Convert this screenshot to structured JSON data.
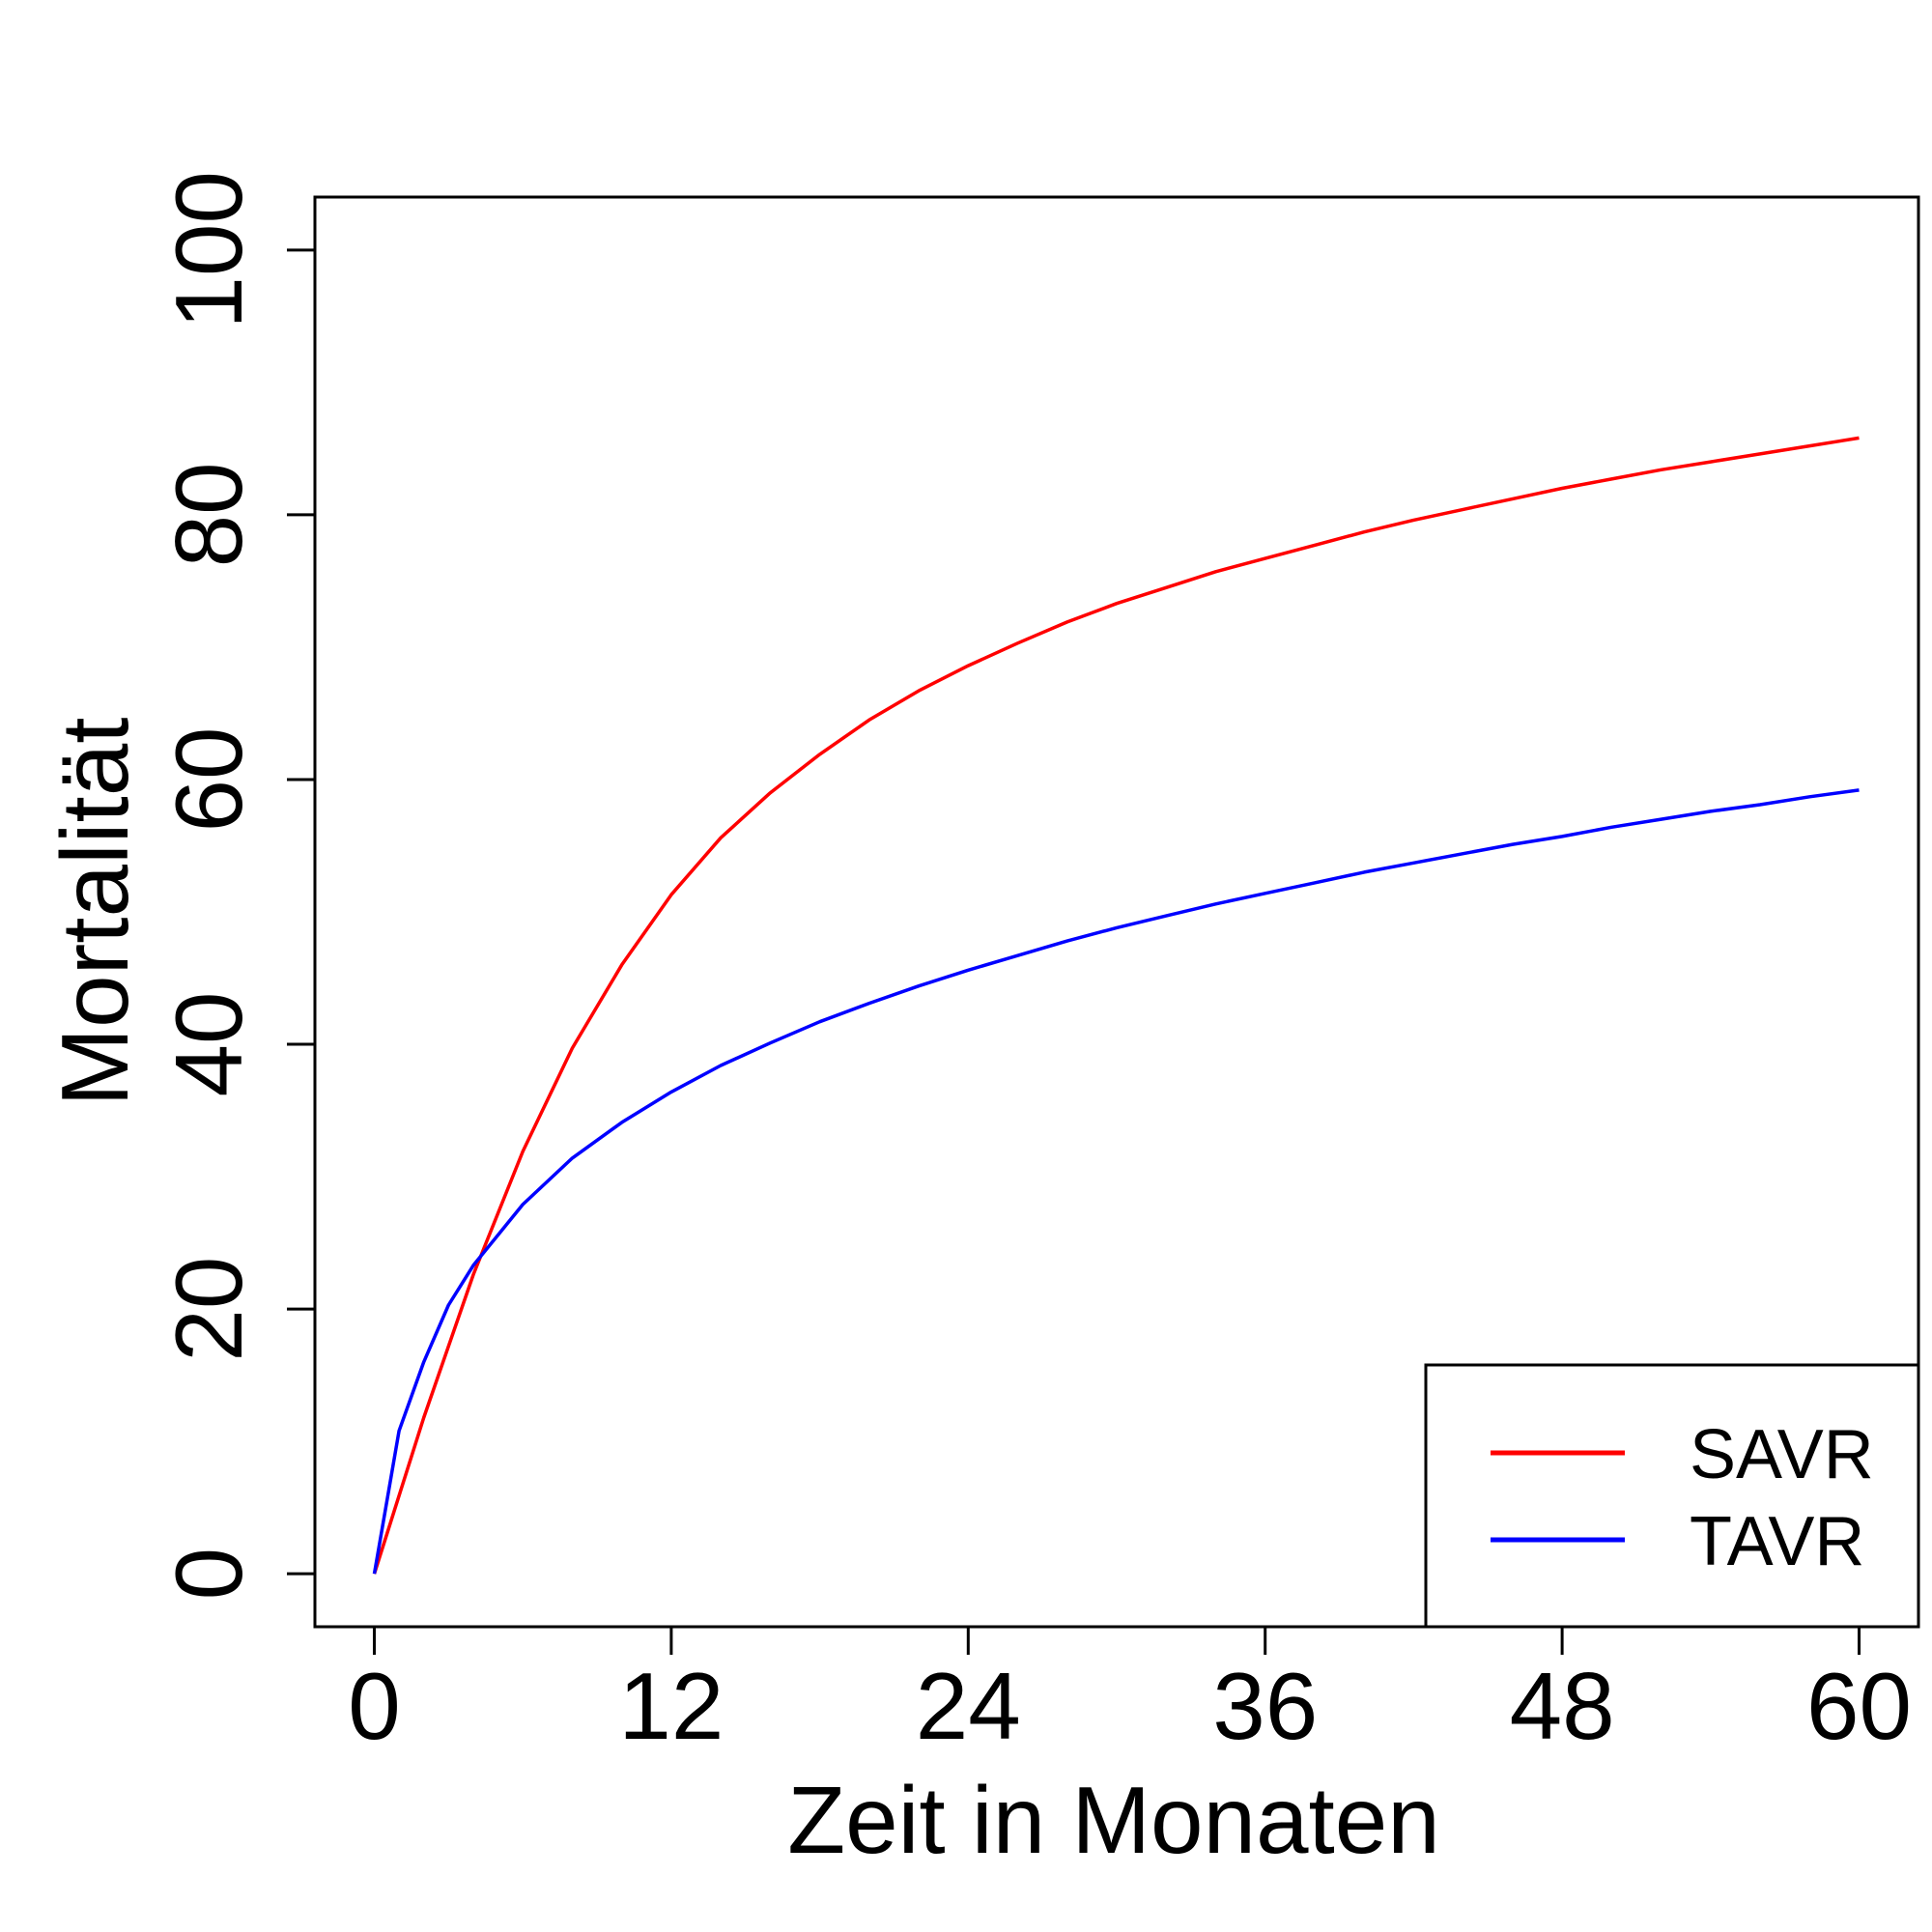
{
  "chart_data": {
    "type": "line",
    "title": "",
    "xlabel": "Zeit in Monaten",
    "ylabel": "Mortalität",
    "xlim": [
      -2.4,
      62.4
    ],
    "ylim": [
      -4,
      104
    ],
    "x_ticks": [
      0,
      12,
      24,
      36,
      48,
      60
    ],
    "y_ticks": [
      0,
      20,
      40,
      60,
      80,
      100
    ],
    "grid": false,
    "legend_position": "bottom-right",
    "series": [
      {
        "name": "SAVR",
        "color": "#ff0000",
        "x": [
          0,
          2,
          4,
          6,
          8,
          10,
          12,
          14,
          16,
          18,
          20,
          22,
          24,
          26,
          28,
          30,
          32,
          34,
          36,
          38,
          40,
          42,
          44,
          46,
          48,
          50,
          52,
          54,
          56,
          58,
          60
        ],
        "y": [
          0,
          11.8,
          22.6,
          31.9,
          39.7,
          46.0,
          51.3,
          55.6,
          59.0,
          61.9,
          64.5,
          66.7,
          68.6,
          70.3,
          71.9,
          73.3,
          74.5,
          75.7,
          76.7,
          77.7,
          78.7,
          79.6,
          80.4,
          81.2,
          82.0,
          82.7,
          83.4,
          84.0,
          84.6,
          85.2,
          85.8
        ]
      },
      {
        "name": "TAVR",
        "color": "#0000ff",
        "x": [
          0,
          1,
          2,
          3,
          4,
          6,
          8,
          10,
          12,
          14,
          16,
          18,
          20,
          22,
          24,
          26,
          28,
          30,
          32,
          34,
          36,
          38,
          40,
          42,
          44,
          46,
          48,
          50,
          52,
          54,
          56,
          58,
          60
        ],
        "y": [
          0,
          10.8,
          16.0,
          20.3,
          23.3,
          27.9,
          31.4,
          34.1,
          36.4,
          38.4,
          40.1,
          41.7,
          43.1,
          44.4,
          45.6,
          46.7,
          47.8,
          48.8,
          49.7,
          50.6,
          51.4,
          52.2,
          53.0,
          53.7,
          54.4,
          55.1,
          55.7,
          56.4,
          57.0,
          57.6,
          58.1,
          58.7,
          59.2
        ]
      }
    ]
  }
}
